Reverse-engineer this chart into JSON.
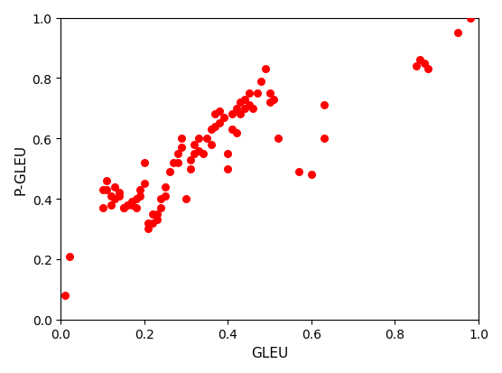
{
  "x": [
    0.01,
    0.02,
    0.1,
    0.1,
    0.11,
    0.11,
    0.12,
    0.12,
    0.13,
    0.13,
    0.14,
    0.14,
    0.15,
    0.15,
    0.16,
    0.17,
    0.17,
    0.18,
    0.18,
    0.19,
    0.19,
    0.2,
    0.2,
    0.21,
    0.21,
    0.22,
    0.22,
    0.23,
    0.23,
    0.24,
    0.24,
    0.25,
    0.25,
    0.26,
    0.27,
    0.28,
    0.28,
    0.29,
    0.29,
    0.3,
    0.31,
    0.31,
    0.32,
    0.32,
    0.33,
    0.33,
    0.34,
    0.35,
    0.36,
    0.36,
    0.37,
    0.37,
    0.38,
    0.38,
    0.39,
    0.4,
    0.4,
    0.41,
    0.41,
    0.42,
    0.42,
    0.43,
    0.43,
    0.44,
    0.44,
    0.45,
    0.45,
    0.46,
    0.47,
    0.48,
    0.49,
    0.5,
    0.5,
    0.51,
    0.52,
    0.57,
    0.6,
    0.63,
    0.63,
    0.85,
    0.86,
    0.87,
    0.88,
    0.95,
    0.98
  ],
  "y": [
    0.08,
    0.21,
    0.37,
    0.43,
    0.43,
    0.46,
    0.38,
    0.41,
    0.4,
    0.44,
    0.41,
    0.42,
    0.37,
    0.37,
    0.38,
    0.38,
    0.39,
    0.37,
    0.4,
    0.41,
    0.43,
    0.45,
    0.52,
    0.3,
    0.32,
    0.32,
    0.35,
    0.33,
    0.35,
    0.37,
    0.4,
    0.41,
    0.44,
    0.49,
    0.52,
    0.52,
    0.55,
    0.57,
    0.6,
    0.4,
    0.5,
    0.53,
    0.55,
    0.58,
    0.56,
    0.6,
    0.55,
    0.6,
    0.58,
    0.63,
    0.64,
    0.68,
    0.65,
    0.69,
    0.67,
    0.5,
    0.55,
    0.63,
    0.68,
    0.62,
    0.7,
    0.68,
    0.72,
    0.7,
    0.73,
    0.71,
    0.75,
    0.7,
    0.75,
    0.79,
    0.83,
    0.72,
    0.75,
    0.73,
    0.6,
    0.49,
    0.48,
    0.6,
    0.71,
    0.84,
    0.86,
    0.85,
    0.83,
    0.95,
    1.0
  ],
  "color": "#ff0000",
  "marker_size": 30,
  "xlabel": "GLEU",
  "ylabel": "P-GLEU",
  "xlim": [
    0.0,
    1.0
  ],
  "ylim": [
    0.0,
    1.0
  ],
  "xticks": [
    0.0,
    0.2,
    0.4,
    0.6,
    0.8,
    1.0
  ],
  "yticks": [
    0.0,
    0.2,
    0.4,
    0.6,
    0.8,
    1.0
  ],
  "figsize": [
    5.56,
    4.14
  ],
  "dpi": 100
}
